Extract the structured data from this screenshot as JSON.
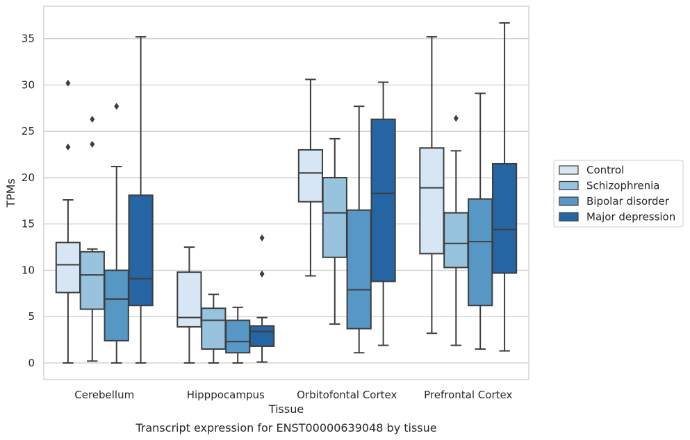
{
  "chart_data": {
    "type": "boxplot",
    "xlabel": "Tissue",
    "ylabel": "TPMs",
    "caption": "Transcript expression for ENST00000639048 by tissue",
    "ylim": [
      -1.8,
      38.5
    ],
    "yticks": [
      0,
      5,
      10,
      15,
      20,
      25,
      30,
      35
    ],
    "grid": "horizontal",
    "legend_position": "right",
    "categories": [
      "Cerebellum",
      "Hipppocampus",
      "Orbitofontal Cortex",
      "Prefrontal Cortex"
    ],
    "series": [
      {
        "name": "Control",
        "color": "#d6e6f4",
        "boxes": [
          {
            "whislo": 0.0,
            "q1": 7.6,
            "med": 10.6,
            "q3": 13.0,
            "whishi": 17.6,
            "fliers": [
              23.3,
              30.2
            ]
          },
          {
            "whislo": 0.0,
            "q1": 3.9,
            "med": 4.9,
            "q3": 9.8,
            "whishi": 12.5,
            "fliers": []
          },
          {
            "whislo": 9.4,
            "q1": 17.4,
            "med": 20.5,
            "q3": 23.0,
            "whishi": 30.6,
            "fliers": []
          },
          {
            "whislo": 3.2,
            "q1": 11.8,
            "med": 18.9,
            "q3": 23.2,
            "whishi": 35.2,
            "fliers": []
          }
        ]
      },
      {
        "name": "Schizophrenia",
        "color": "#97c3df",
        "boxes": [
          {
            "whislo": 0.2,
            "q1": 5.8,
            "med": 9.5,
            "q3": 12.0,
            "whishi": 12.3,
            "fliers": [
              23.6,
              26.3
            ]
          },
          {
            "whislo": 0.0,
            "q1": 1.5,
            "med": 4.6,
            "q3": 5.9,
            "whishi": 7.4,
            "fliers": []
          },
          {
            "whislo": 4.2,
            "q1": 11.4,
            "med": 16.2,
            "q3": 20.0,
            "whishi": 24.2,
            "fliers": []
          },
          {
            "whislo": 1.9,
            "q1": 10.3,
            "med": 12.9,
            "q3": 16.2,
            "whishi": 22.9,
            "fliers": [
              26.4
            ]
          }
        ]
      },
      {
        "name": "Bipolar disorder",
        "color": "#5797c5",
        "boxes": [
          {
            "whislo": 0.0,
            "q1": 2.4,
            "med": 6.9,
            "q3": 10.0,
            "whishi": 21.2,
            "fliers": [
              27.7
            ]
          },
          {
            "whislo": 0.0,
            "q1": 1.1,
            "med": 2.3,
            "q3": 4.6,
            "whishi": 6.0,
            "fliers": []
          },
          {
            "whislo": 1.1,
            "q1": 3.7,
            "med": 7.9,
            "q3": 16.5,
            "whishi": 27.7,
            "fliers": []
          },
          {
            "whislo": 1.5,
            "q1": 6.2,
            "med": 13.1,
            "q3": 17.7,
            "whishi": 29.1,
            "fliers": []
          }
        ]
      },
      {
        "name": "Major depression",
        "color": "#2565a3",
        "boxes": [
          {
            "whislo": 0.0,
            "q1": 6.2,
            "med": 9.1,
            "q3": 18.1,
            "whishi": 35.2,
            "fliers": []
          },
          {
            "whislo": 0.1,
            "q1": 1.8,
            "med": 3.4,
            "q3": 4.0,
            "whishi": 4.9,
            "fliers": [
              9.6,
              13.5
            ]
          },
          {
            "whislo": 1.9,
            "q1": 8.8,
            "med": 18.3,
            "q3": 26.3,
            "whishi": 30.3,
            "fliers": []
          },
          {
            "whislo": 1.3,
            "q1": 9.7,
            "med": 14.4,
            "q3": 21.5,
            "whishi": 36.7,
            "fliers": []
          }
        ]
      }
    ]
  }
}
